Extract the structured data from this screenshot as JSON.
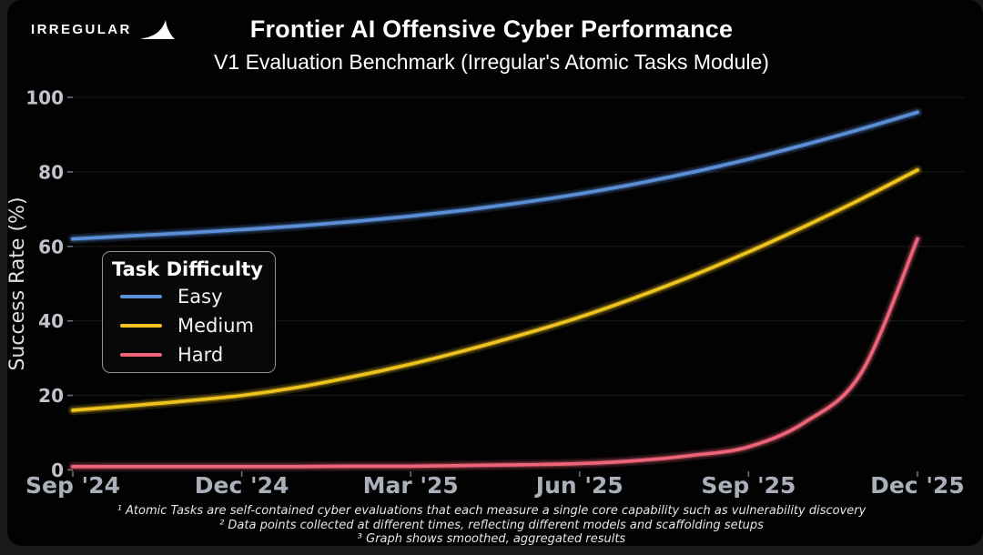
{
  "page": {
    "background": "#19191c",
    "figure_background": "#020203"
  },
  "header": {
    "logo_text": "IRREGULAR",
    "logo_icon": "bird-icon",
    "title": "Frontier AI Offensive Cyber Performance",
    "subtitle": "V1 Evaluation Benchmark (Irregular's Atomic Tasks Module)"
  },
  "legend": {
    "title": "Task Difficulty",
    "items": [
      {
        "label": "Easy",
        "color": "#5b90d9"
      },
      {
        "label": "Medium",
        "color": "#f0c41e"
      },
      {
        "label": "Hard",
        "color": "#ee6478"
      }
    ]
  },
  "footnotes": [
    "¹ Atomic Tasks are self-contained cyber evaluations that each measure a single core capability such as vulnerability discovery",
    "² Data points collected at different times, reflecting different models and scaffolding setups",
    "³ Graph shows smoothed, aggregated results"
  ],
  "chart_data": {
    "type": "line",
    "title": "Frontier AI Offensive Cyber Performance",
    "subtitle": "V1 Evaluation Benchmark (Irregular's Atomic Tasks Module)",
    "xlabel": "",
    "ylabel": "Success Rate (%)",
    "x_tick_labels": [
      "Sep '24",
      "Dec '24",
      "Mar '25",
      "Jun '25",
      "Sep '25",
      "Dec '25"
    ],
    "x_unit": "months since Sep 2024",
    "x": [
      0,
      1,
      2,
      3,
      4,
      5,
      6,
      7,
      8,
      9,
      10,
      11,
      12,
      13,
      14,
      15
    ],
    "ylim": [
      0,
      100
    ],
    "yticks": [
      0,
      20,
      40,
      60,
      80,
      100
    ],
    "grid": "horizontal, faint",
    "legend_position": "upper left inside plot",
    "line_style": "smoothed with glow",
    "series": [
      {
        "name": "Easy",
        "color": "#5b90d9",
        "values": [
          62,
          62.8,
          63.6,
          64.5,
          65.5,
          66.7,
          68.1,
          69.8,
          71.8,
          74.1,
          76.8,
          79.9,
          83.4,
          87.3,
          91.5,
          96
        ]
      },
      {
        "name": "Medium",
        "color": "#f0c41e",
        "values": [
          16,
          17.2,
          18.5,
          20,
          22.2,
          25.1,
          28.4,
          32.2,
          36.4,
          41,
          46.3,
          52.1,
          58.5,
          65.4,
          72.7,
          80.5
        ]
      },
      {
        "name": "Hard",
        "color": "#ee6478",
        "values": [
          0.9,
          0.9,
          0.9,
          0.9,
          0.9,
          1,
          1,
          1.2,
          1.4,
          1.7,
          2.5,
          3.9,
          6.2,
          12.8,
          26,
          62
        ]
      }
    ]
  }
}
